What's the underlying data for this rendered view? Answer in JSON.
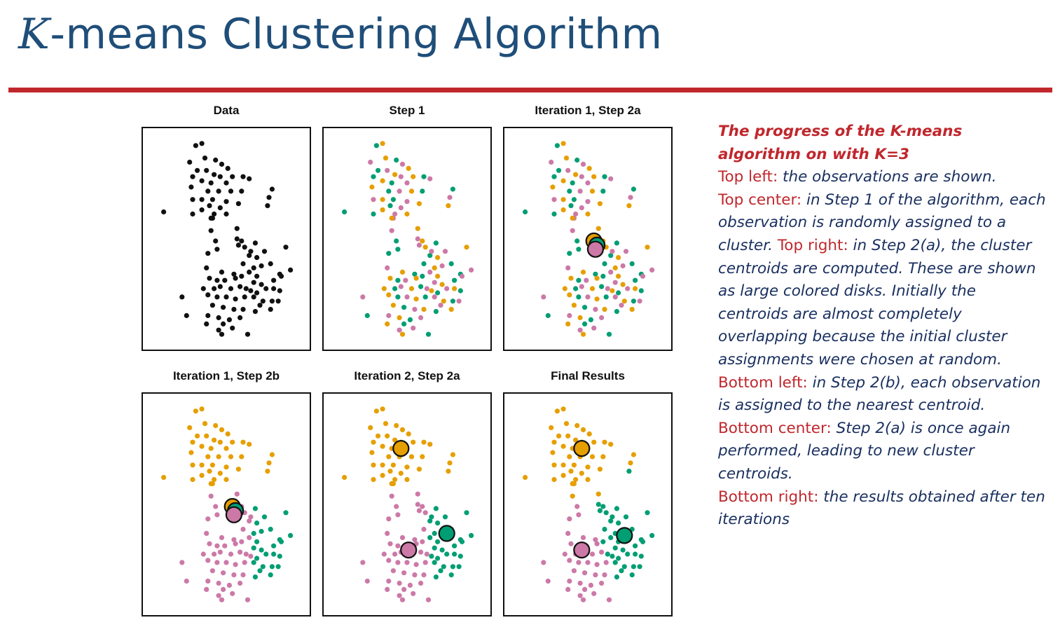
{
  "title": {
    "k": "K",
    "rest": "-means Clustering Algorithm"
  },
  "colors": {
    "orange": "#E69F00",
    "pink": "#CC79A7",
    "green": "#009E73",
    "black": "#111111",
    "title_blue": "#1f4e79",
    "accent_red": "#c0272d"
  },
  "caption": {
    "heading_1": "The progress of the K-means",
    "heading_2": "algorithm on with K=3",
    "p1_label": "Top left:",
    "p1_text": " the observations are shown.",
    "p2_label": "Top center:",
    "p2_text": " in Step 1 of the algorithm, each observation is randomly assigned to a cluster. ",
    "p3_label": "Top right:",
    "p3_text": " in Step 2(a), the cluster centroids are computed. These are shown as large colored disks. Initially the centroids are almost completely overlapping because the initial cluster assignments were chosen at random.",
    "p4_label": "Bottom left:",
    "p4_text": " in Step 2(b), each observation is assigned to the nearest centroid.",
    "p5_label": "Bottom center:",
    "p5_text": " Step 2(a) is once again performed, leading to new cluster centroids.",
    "p6_label": "Bottom right:",
    "p6_text": " the results obtained after ten iterations"
  },
  "chart_data": {
    "type": "scatter",
    "xlim": [
      0,
      10
    ],
    "ylim": [
      0,
      10
    ],
    "points": [
      [
        3.4,
        9.6
      ],
      [
        3.0,
        9.5
      ],
      [
        2.6,
        8.7
      ],
      [
        3.6,
        8.9
      ],
      [
        4.3,
        8.8
      ],
      [
        4.7,
        8.6
      ],
      [
        5.1,
        8.4
      ],
      [
        3.1,
        8.3
      ],
      [
        3.7,
        8.3
      ],
      [
        4.2,
        8.1
      ],
      [
        2.8,
        8.0
      ],
      [
        4.6,
        8.0
      ],
      [
        5.4,
        8.0
      ],
      [
        6.1,
        8.0
      ],
      [
        6.5,
        7.9
      ],
      [
        3.4,
        7.8
      ],
      [
        4.0,
        7.7
      ],
      [
        5.0,
        7.7
      ],
      [
        2.7,
        7.5
      ],
      [
        3.8,
        7.3
      ],
      [
        4.5,
        7.3
      ],
      [
        5.3,
        7.3
      ],
      [
        6.0,
        7.3
      ],
      [
        2.8,
        6.9
      ],
      [
        3.4,
        6.9
      ],
      [
        4.1,
        6.9
      ],
      [
        5.0,
        6.8
      ],
      [
        5.8,
        6.7
      ],
      [
        3.9,
        6.6
      ],
      [
        4.6,
        6.5
      ],
      [
        3.4,
        6.4
      ],
      [
        2.8,
        6.2
      ],
      [
        4.2,
        6.2
      ],
      [
        5.0,
        6.2
      ],
      [
        8.0,
        7.4
      ],
      [
        7.8,
        7.0
      ],
      [
        7.7,
        6.6
      ],
      [
        0.9,
        6.3
      ],
      [
        4.1,
        6.0
      ],
      [
        4.0,
        6.0
      ],
      [
        4.3,
        4.9
      ],
      [
        4.0,
        5.4
      ],
      [
        5.7,
        5.5
      ],
      [
        4.4,
        4.5
      ],
      [
        5.7,
        5.0
      ],
      [
        6.0,
        4.9
      ],
      [
        6.5,
        4.2
      ],
      [
        5.8,
        4.7
      ],
      [
        6.2,
        4.6
      ],
      [
        6.9,
        4.8
      ],
      [
        7.5,
        4.4
      ],
      [
        8.9,
        4.6
      ],
      [
        3.8,
        4.3
      ],
      [
        6.6,
        4.4
      ],
      [
        7.0,
        4.1
      ],
      [
        6.1,
        3.8
      ],
      [
        7.3,
        3.7
      ],
      [
        6.8,
        3.6
      ],
      [
        7.9,
        3.8
      ],
      [
        3.7,
        3.6
      ],
      [
        4.7,
        3.4
      ],
      [
        5.5,
        3.3
      ],
      [
        6.5,
        3.4
      ],
      [
        7.0,
        3.2
      ],
      [
        8.5,
        3.3
      ],
      [
        9.2,
        3.5
      ],
      [
        3.9,
        3.1
      ],
      [
        4.4,
        3.0
      ],
      [
        4.9,
        3.0
      ],
      [
        5.6,
        3.1
      ],
      [
        6.0,
        3.2
      ],
      [
        6.8,
        2.9
      ],
      [
        7.3,
        2.8
      ],
      [
        8.1,
        3.0
      ],
      [
        8.6,
        3.2
      ],
      [
        3.5,
        2.6
      ],
      [
        4.2,
        2.6
      ],
      [
        4.6,
        2.7
      ],
      [
        5.3,
        2.6
      ],
      [
        5.9,
        2.7
      ],
      [
        6.3,
        2.6
      ],
      [
        6.6,
        2.5
      ],
      [
        7.0,
        2.4
      ],
      [
        7.6,
        2.6
      ],
      [
        8.1,
        2.6
      ],
      [
        8.5,
        2.5
      ],
      [
        2.1,
        2.2
      ],
      [
        3.8,
        2.3
      ],
      [
        4.4,
        2.2
      ],
      [
        5.0,
        2.2
      ],
      [
        5.6,
        2.1
      ],
      [
        6.2,
        2.2
      ],
      [
        6.8,
        2.2
      ],
      [
        7.4,
        2.0
      ],
      [
        8.0,
        2.0
      ],
      [
        8.4,
        2.0
      ],
      [
        4.1,
        1.8
      ],
      [
        4.8,
        1.7
      ],
      [
        5.5,
        1.6
      ],
      [
        6.1,
        1.6
      ],
      [
        6.9,
        1.5
      ],
      [
        7.2,
        1.8
      ],
      [
        7.9,
        1.6
      ],
      [
        2.4,
        1.3
      ],
      [
        3.8,
        1.3
      ],
      [
        4.5,
        1.2
      ],
      [
        5.2,
        1.1
      ],
      [
        5.9,
        1.2
      ],
      [
        3.7,
        0.9
      ],
      [
        4.8,
        0.9
      ],
      [
        5.4,
        0.7
      ],
      [
        4.7,
        0.4
      ],
      [
        6.4,
        0.4
      ],
      [
        4.5,
        0.6
      ]
    ],
    "panels": [
      {
        "title": "Data",
        "mode": "data",
        "centroids": []
      },
      {
        "title": "Step 1",
        "mode": "random",
        "centroids": []
      },
      {
        "title": "Iteration 1, Step 2a",
        "mode": "random",
        "centroids": [
          {
            "cluster": "orange",
            "x": 5.4,
            "y": 4.9
          },
          {
            "cluster": "green",
            "x": 5.6,
            "y": 4.7
          },
          {
            "cluster": "pink",
            "x": 5.5,
            "y": 4.5
          }
        ]
      },
      {
        "title": "Iteration 1, Step 2b",
        "mode": "step2b",
        "centroids": [
          {
            "cluster": "orange",
            "x": 5.4,
            "y": 4.9
          },
          {
            "cluster": "green",
            "x": 5.6,
            "y": 4.7
          },
          {
            "cluster": "pink",
            "x": 5.5,
            "y": 4.5
          }
        ]
      },
      {
        "title": "Iteration 2, Step 2a",
        "mode": "step2b",
        "centroids": [
          {
            "cluster": "orange",
            "x": 4.6,
            "y": 7.7
          },
          {
            "cluster": "green",
            "x": 7.6,
            "y": 3.6
          },
          {
            "cluster": "pink",
            "x": 5.1,
            "y": 2.8
          }
        ]
      },
      {
        "title": "Final Results",
        "mode": "final",
        "centroids": [
          {
            "cluster": "orange",
            "x": 4.6,
            "y": 7.7
          },
          {
            "cluster": "green",
            "x": 7.4,
            "y": 3.5
          },
          {
            "cluster": "pink",
            "x": 4.6,
            "y": 2.8
          }
        ]
      }
    ]
  }
}
